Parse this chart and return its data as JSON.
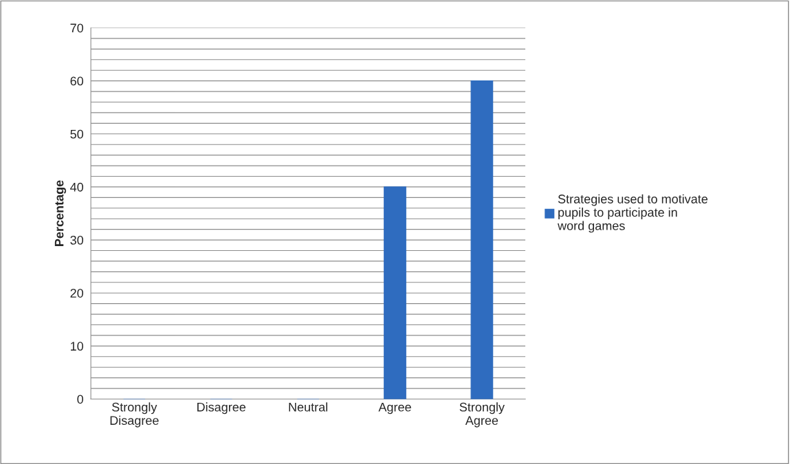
{
  "chart_data": {
    "type": "bar",
    "ylabel": "Percentage",
    "categories": [
      "Strongly Disagree",
      "Disagree",
      "Neutral",
      "Agree",
      "Strongly Agree"
    ],
    "series": [
      {
        "name": "Strategies used to motivate pupils to participate in word games",
        "color": "#2f6cbf",
        "values": [
          0,
          0,
          0,
          40,
          60
        ]
      }
    ],
    "ylim": [
      0,
      70
    ],
    "yticks": [
      0,
      {
        "value": 2,
        "label": null
      },
      {
        "value": 4,
        "label": null
      },
      {
        "value": 6,
        "label": null
      },
      {
        "value": 8,
        "label": null
      },
      10,
      {
        "value": 12,
        "label": null
      },
      {
        "value": 14,
        "label": null
      },
      {
        "value": 16,
        "label": null
      },
      {
        "value": 18,
        "label": null
      },
      20,
      {
        "value": 22,
        "label": null
      },
      {
        "value": 24,
        "label": null
      },
      {
        "value": 26,
        "label": null
      },
      {
        "value": 28,
        "label": null
      },
      30,
      {
        "value": 32,
        "label": null
      },
      {
        "value": 34,
        "label": null
      },
      {
        "value": 36,
        "label": null
      },
      {
        "value": 38,
        "label": null
      },
      40,
      {
        "value": 42,
        "label": null
      },
      {
        "value": 44,
        "label": null
      },
      {
        "value": 46,
        "label": null
      },
      {
        "value": 48,
        "label": null
      },
      50,
      {
        "value": 52,
        "label": null
      },
      {
        "value": 54,
        "label": null
      },
      {
        "value": 56,
        "label": null
      },
      {
        "value": 58,
        "label": null
      },
      60,
      {
        "value": 62,
        "label": null
      },
      {
        "value": 64,
        "label": null
      },
      {
        "value": 66,
        "label": null
      },
      {
        "value": 68,
        "label": null
      },
      70
    ],
    "grid": "y",
    "legend": "right"
  }
}
